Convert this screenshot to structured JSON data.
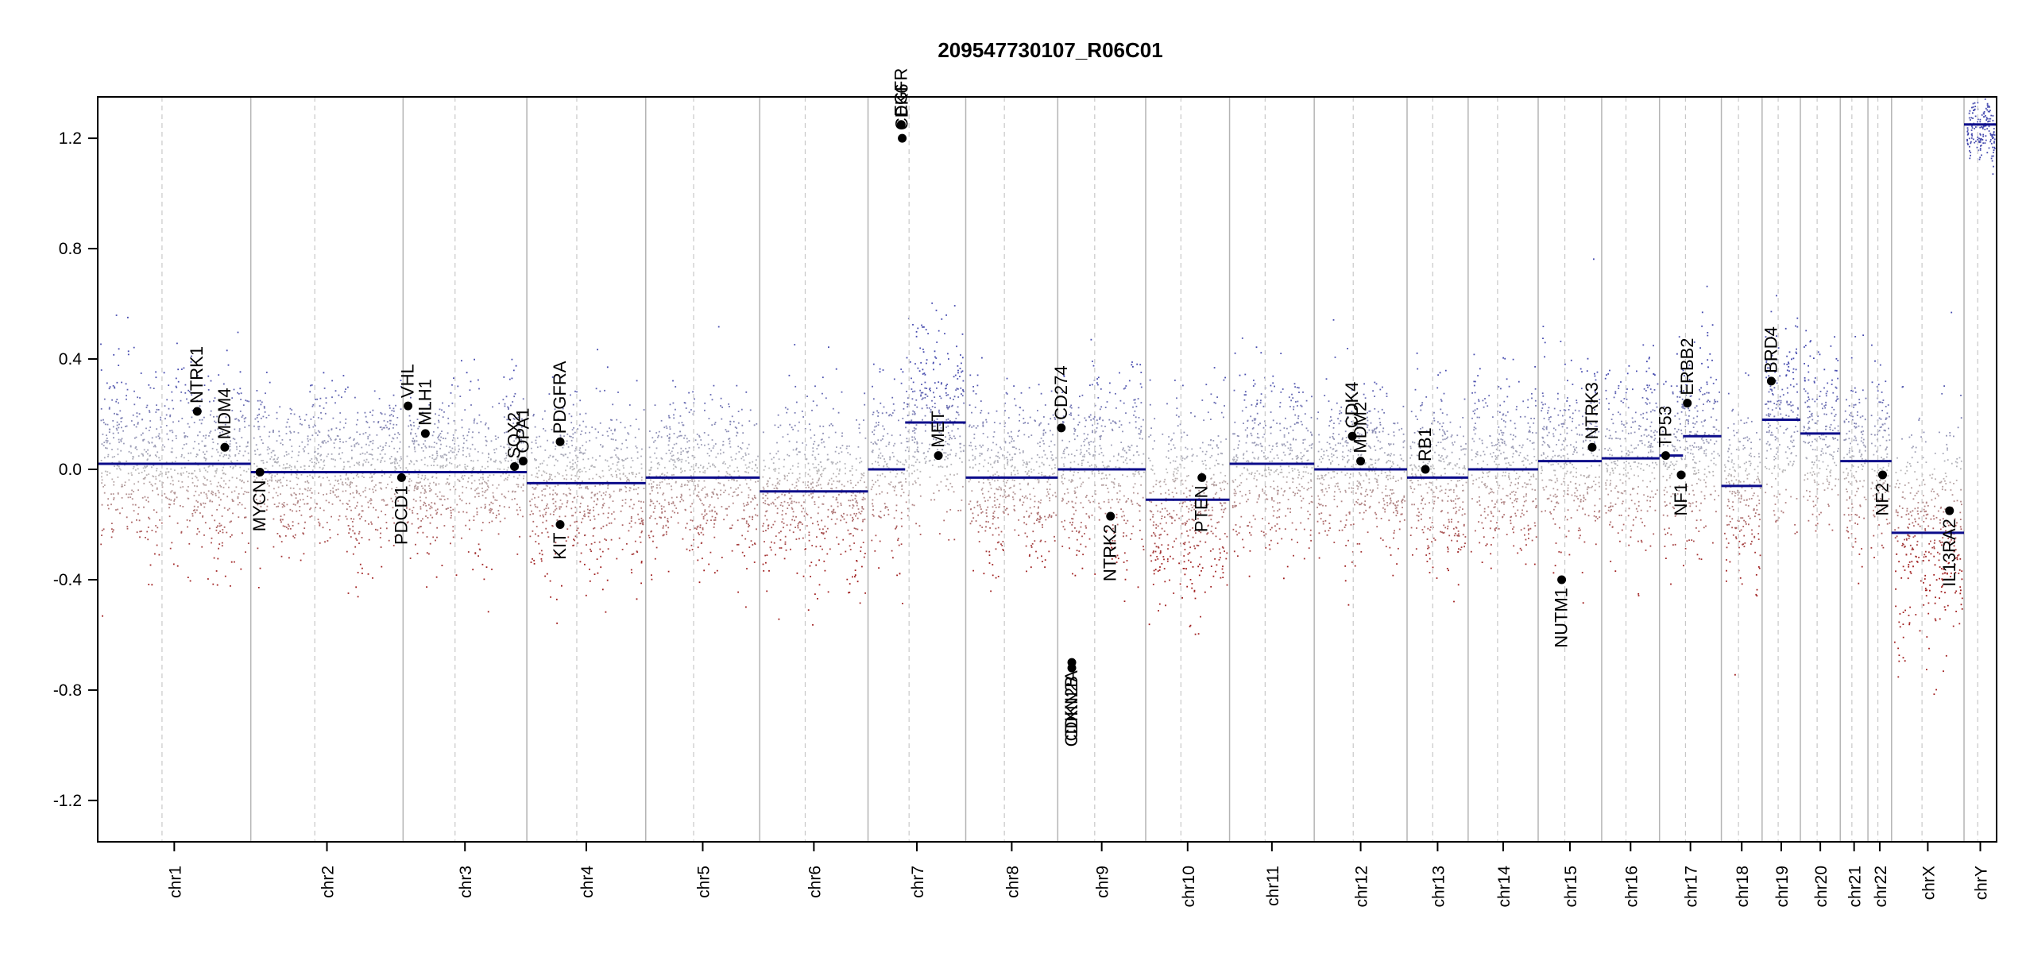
{
  "chart_data": {
    "type": "scatter",
    "title": "209547730107_R06C01",
    "xlabel": "",
    "ylabel": "",
    "ylim": [
      -1.35,
      1.35
    ],
    "y_ticks": [
      -1.2,
      -0.8,
      -0.4,
      0.0,
      0.4,
      0.8,
      1.2
    ],
    "y_tick_labels": [
      "-1.2",
      "-0.8",
      "-0.4",
      "0.0",
      "0.4",
      "0.8",
      "1.2"
    ],
    "grid": false,
    "legend": "none",
    "colors": {
      "positive_points": "#5a5fb0",
      "negative_points": "#a83232",
      "neutral_points": "#b0b0b0",
      "segment_line": "#0b0b8a",
      "chrom_boundary": "#b4b4b4",
      "centromere": "#c8c8c8",
      "gene_marker": "#000000"
    },
    "chromosomes": [
      {
        "name": "chr1",
        "segments": [
          {
            "from": 0.0,
            "to": 1.0,
            "value": 0.02
          }
        ],
        "spread": 0.16
      },
      {
        "name": "chr2",
        "segments": [
          {
            "from": 0.0,
            "to": 1.0,
            "value": -0.01
          }
        ],
        "spread": 0.14
      },
      {
        "name": "chr3",
        "segments": [
          {
            "from": 0.0,
            "to": 1.0,
            "value": -0.01
          }
        ],
        "spread": 0.14
      },
      {
        "name": "chr4",
        "segments": [
          {
            "from": 0.0,
            "to": 1.0,
            "value": -0.05
          }
        ],
        "spread": 0.15
      },
      {
        "name": "chr5",
        "segments": [
          {
            "from": 0.0,
            "to": 1.0,
            "value": -0.03
          }
        ],
        "spread": 0.14
      },
      {
        "name": "chr6",
        "segments": [
          {
            "from": 0.0,
            "to": 1.0,
            "value": -0.08
          }
        ],
        "spread": 0.16
      },
      {
        "name": "chr7",
        "segments": [
          {
            "from": 0.0,
            "to": 0.38,
            "value": 0.0
          },
          {
            "from": 0.38,
            "to": 1.0,
            "value": 0.17
          }
        ],
        "spread": 0.16
      },
      {
        "name": "chr8",
        "segments": [
          {
            "from": 0.0,
            "to": 1.0,
            "value": -0.03
          }
        ],
        "spread": 0.15
      },
      {
        "name": "chr9",
        "segments": [
          {
            "from": 0.0,
            "to": 1.0,
            "value": 0.0
          }
        ],
        "spread": 0.16
      },
      {
        "name": "chr10",
        "segments": [
          {
            "from": 0.0,
            "to": 1.0,
            "value": -0.11
          }
        ],
        "spread": 0.18
      },
      {
        "name": "chr11",
        "segments": [
          {
            "from": 0.0,
            "to": 1.0,
            "value": 0.02
          }
        ],
        "spread": 0.15
      },
      {
        "name": "chr12",
        "segments": [
          {
            "from": 0.0,
            "to": 1.0,
            "value": 0.0
          }
        ],
        "spread": 0.14
      },
      {
        "name": "chr13",
        "segments": [
          {
            "from": 0.0,
            "to": 1.0,
            "value": -0.03
          }
        ],
        "spread": 0.15
      },
      {
        "name": "chr14",
        "segments": [
          {
            "from": 0.0,
            "to": 1.0,
            "value": 0.0
          }
        ],
        "spread": 0.14
      },
      {
        "name": "chr15",
        "segments": [
          {
            "from": 0.0,
            "to": 1.0,
            "value": 0.03
          }
        ],
        "spread": 0.16
      },
      {
        "name": "chr16",
        "segments": [
          {
            "from": 0.0,
            "to": 1.0,
            "value": 0.04
          }
        ],
        "spread": 0.16
      },
      {
        "name": "chr17",
        "segments": [
          {
            "from": 0.0,
            "to": 0.38,
            "value": 0.05
          },
          {
            "from": 0.38,
            "to": 1.0,
            "value": 0.12
          }
        ],
        "spread": 0.17
      },
      {
        "name": "chr18",
        "segments": [
          {
            "from": 0.0,
            "to": 1.0,
            "value": -0.06
          }
        ],
        "spread": 0.15
      },
      {
        "name": "chr19",
        "segments": [
          {
            "from": 0.0,
            "to": 1.0,
            "value": 0.18
          }
        ],
        "spread": 0.17
      },
      {
        "name": "chr20",
        "segments": [
          {
            "from": 0.0,
            "to": 1.0,
            "value": 0.13
          }
        ],
        "spread": 0.16
      },
      {
        "name": "chr21",
        "segments": [
          {
            "from": 0.0,
            "to": 1.0,
            "value": 0.03
          }
        ],
        "spread": 0.15
      },
      {
        "name": "chr22",
        "segments": [
          {
            "from": 0.0,
            "to": 1.0,
            "value": 0.03
          }
        ],
        "spread": 0.16
      },
      {
        "name": "chrX",
        "segments": [
          {
            "from": 0.0,
            "to": 1.0,
            "value": -0.23
          }
        ],
        "spread": 0.2
      },
      {
        "name": "chrY",
        "segments": [
          {
            "from": 0.0,
            "to": 1.0,
            "value": 1.25
          }
        ],
        "spread": 0.05
      }
    ],
    "genes": [
      {
        "name": "NTRK1",
        "chromosome": "chr1",
        "position": 0.65,
        "value": 0.21
      },
      {
        "name": "MDM4",
        "chromosome": "chr1",
        "position": 0.83,
        "value": 0.08
      },
      {
        "name": "MYCN",
        "chromosome": "chr2",
        "position": 0.06,
        "value": -0.01
      },
      {
        "name": "PDCD1",
        "chromosome": "chr2",
        "position": 0.99,
        "value": -0.03
      },
      {
        "name": "VHL",
        "chromosome": "chr3",
        "position": 0.04,
        "value": 0.23
      },
      {
        "name": "MLH1",
        "chromosome": "chr3",
        "position": 0.18,
        "value": 0.13
      },
      {
        "name": "SOX2",
        "chromosome": "chr3",
        "position": 0.9,
        "value": 0.01
      },
      {
        "name": "OPA1",
        "chromosome": "chr3",
        "position": 0.97,
        "value": 0.03
      },
      {
        "name": "PDGFRA",
        "chromosome": "chr4",
        "position": 0.28,
        "value": 0.1
      },
      {
        "name": "KIT",
        "chromosome": "chr4",
        "position": 0.28,
        "value": -0.2
      },
      {
        "name": "EGFR",
        "chromosome": "chr7",
        "position": 0.34,
        "value": 1.25
      },
      {
        "name": "CDK6",
        "chromosome": "chr7",
        "position": 0.35,
        "value": 1.2
      },
      {
        "name": "MET",
        "chromosome": "chr7",
        "position": 0.72,
        "value": 0.05
      },
      {
        "name": "CD274",
        "chromosome": "chr9",
        "position": 0.04,
        "value": 0.15
      },
      {
        "name": "CDKN2A",
        "chromosome": "chr9",
        "position": 0.16,
        "value": -0.7
      },
      {
        "name": "CDKN2B",
        "chromosome": "chr9",
        "position": 0.16,
        "value": -0.72
      },
      {
        "name": "NTRK2",
        "chromosome": "chr9",
        "position": 0.6,
        "value": -0.17
      },
      {
        "name": "PTEN",
        "chromosome": "chr10",
        "position": 0.67,
        "value": -0.03
      },
      {
        "name": "CDK4",
        "chromosome": "chr12",
        "position": 0.41,
        "value": 0.12
      },
      {
        "name": "MDM2",
        "chromosome": "chr12",
        "position": 0.5,
        "value": 0.03
      },
      {
        "name": "RB1",
        "chromosome": "chr13",
        "position": 0.3,
        "value": 0.0
      },
      {
        "name": "NUTM1",
        "chromosome": "chr15",
        "position": 0.37,
        "value": -0.4
      },
      {
        "name": "NTRK3",
        "chromosome": "chr15",
        "position": 0.85,
        "value": 0.08
      },
      {
        "name": "TP53",
        "chromosome": "chr17",
        "position": 0.1,
        "value": 0.05
      },
      {
        "name": "NF1",
        "chromosome": "chr17",
        "position": 0.35,
        "value": -0.02
      },
      {
        "name": "ERBB2",
        "chromosome": "chr17",
        "position": 0.45,
        "value": 0.24
      },
      {
        "name": "BRD4",
        "chromosome": "chr19",
        "position": 0.24,
        "value": 0.32
      },
      {
        "name": "NF2",
        "chromosome": "chr22",
        "position": 0.62,
        "value": -0.02
      },
      {
        "name": "IL13RA2",
        "chromosome": "chrX",
        "position": 0.8,
        "value": -0.15
      }
    ]
  }
}
